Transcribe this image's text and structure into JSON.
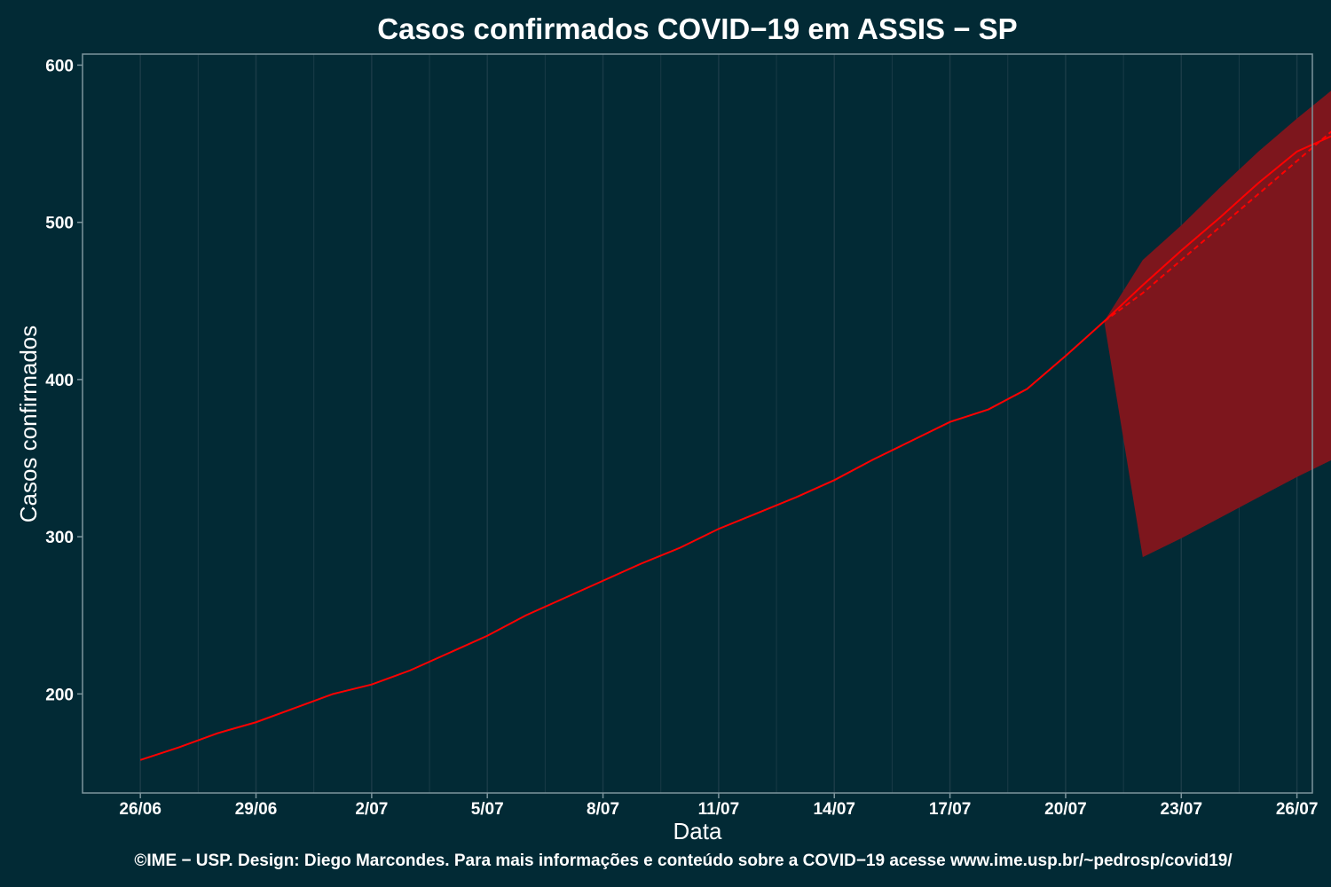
{
  "chart_data": {
    "type": "line",
    "title": "Casos confirmados COVID−19 em ASSIS − SP",
    "xlabel": "Data",
    "ylabel": "Casos confirmados",
    "caption": "©IME − USP. Design: Diego Marcondes. Para mais informações e conteúdo sobre a COVID−19 acesse www.ime.usp.br/~pedrosp/covid19/",
    "x_ticks": [
      "26/06",
      "29/06",
      "2/07",
      "5/07",
      "8/07",
      "11/07",
      "14/07",
      "17/07",
      "20/07",
      "23/07",
      "26/07"
    ],
    "x_tick_days": [
      0,
      3,
      6,
      9,
      12,
      15,
      18,
      21,
      24,
      27,
      30
    ],
    "xlim_days": [
      -1.5,
      30.4
    ],
    "y_ticks": [
      200,
      300,
      400,
      500,
      600
    ],
    "ylim": [
      137,
      607
    ],
    "grid": true,
    "series": [
      {
        "kind": "observed",
        "x": [
          "26/06",
          "27/06",
          "28/06",
          "29/06",
          "30/06",
          "1/07",
          "2/07",
          "3/07",
          "4/07",
          "5/07",
          "6/07",
          "7/07",
          "8/07",
          "9/07",
          "10/07",
          "11/07",
          "12/07",
          "13/07",
          "14/07",
          "15/07",
          "16/07",
          "17/07",
          "18/07",
          "19/07",
          "20/07",
          "21/07"
        ],
        "values": [
          158,
          166,
          175,
          182,
          191,
          200,
          206,
          215,
          226,
          237,
          250,
          261,
          272,
          283,
          293,
          305,
          315,
          325,
          336,
          349,
          361,
          373,
          381,
          394,
          415,
          437
        ]
      },
      {
        "kind": "forecast",
        "x": [
          "21/07",
          "22/07",
          "23/07",
          "24/07",
          "25/07",
          "26/07",
          "27/07"
        ],
        "values": [
          437,
          460,
          482,
          503,
          525,
          545,
          556
        ]
      },
      {
        "kind": "forecast-trend",
        "x": [
          "21/07",
          "22/07",
          "23/07",
          "24/07",
          "25/07",
          "26/07",
          "27/07"
        ],
        "values": [
          437,
          455,
          476,
          497,
          518,
          539,
          560
        ]
      }
    ],
    "band": {
      "x": [
        "21/07",
        "22/07",
        "23/07",
        "24/07",
        "25/07",
        "26/07",
        "27/07"
      ],
      "lower": [
        437,
        287,
        299,
        312,
        325,
        338,
        350
      ],
      "upper": [
        437,
        476,
        498,
        522,
        545,
        566,
        586
      ]
    },
    "colors": {
      "background": "#022a35",
      "grid": "#1a3b47",
      "axis": "#7d959d",
      "line": "#ff0000",
      "band": "#7d161d",
      "text": "#ffffff"
    }
  }
}
